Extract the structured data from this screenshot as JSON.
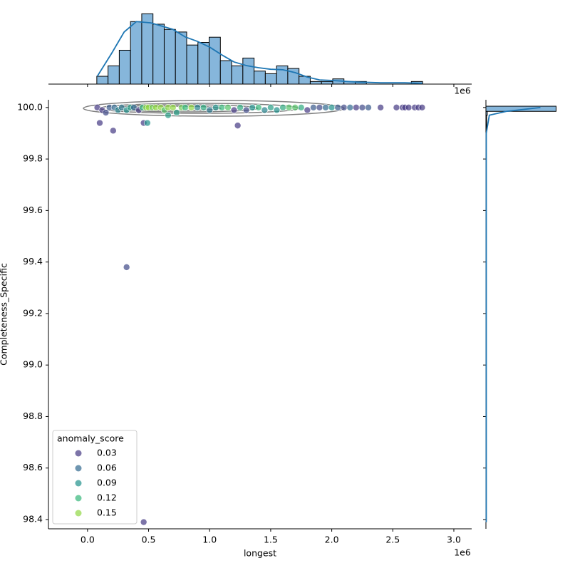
{
  "chart_data": {
    "type": "scatter",
    "x_label": "longest",
    "y_label": "Completeness_Specific",
    "x_offset_label": "1e6",
    "xlim": [
      -0.32,
      3.146
    ],
    "ylim": [
      98.364,
      100.03
    ],
    "xticks": [
      {
        "value": 0,
        "label": "0.0"
      },
      0.5,
      {
        "value": 1,
        "label": "1.0"
      },
      1.5,
      {
        "value": 2,
        "label": "2.0"
      },
      2.5,
      {
        "value": 3,
        "label": "3.0"
      }
    ],
    "yticks": [
      98.4,
      98.6,
      98.8,
      {
        "value": 99,
        "label": "99.0"
      },
      99.2,
      99.4,
      99.6,
      99.8,
      {
        "value": 100,
        "label": "100.0"
      }
    ],
    "x": [
      0.08,
      0.12,
      0.15,
      0.18,
      0.22,
      0.25,
      0.28,
      0.32,
      0.35,
      0.38,
      0.42,
      0.45,
      0.48,
      0.5,
      0.53,
      0.56,
      0.6,
      0.63,
      0.66,
      0.7,
      0.73,
      0.77,
      0.8,
      0.85,
      0.9,
      0.95,
      1.0,
      1.05,
      1.1,
      1.15,
      1.2,
      1.25,
      1.3,
      1.35,
      1.4,
      1.45,
      1.5,
      1.55,
      1.6,
      1.65,
      1.7,
      1.75,
      1.8,
      1.85,
      1.9,
      1.95,
      2.0,
      2.05,
      2.1,
      2.15,
      2.2,
      2.25,
      2.3,
      2.4,
      2.53,
      2.58,
      2.6,
      2.63,
      2.68,
      2.71,
      2.74,
      0.1,
      0.21,
      0.46,
      0.49,
      0.66,
      1.23,
      0.32,
      0.46
    ],
    "y": [
      100.0,
      99.99,
      99.98,
      100.0,
      100.0,
      99.99,
      100.0,
      99.99,
      100.0,
      100.0,
      99.99,
      100.0,
      100.0,
      100.0,
      100.0,
      100.0,
      100.0,
      99.99,
      100.0,
      100.0,
      99.98,
      100.0,
      100.0,
      100.0,
      100.0,
      100.0,
      99.99,
      100.0,
      100.0,
      100.0,
      99.99,
      100.0,
      99.99,
      100.0,
      100.0,
      99.99,
      100.0,
      99.99,
      100.0,
      100.0,
      100.0,
      100.0,
      99.99,
      100.0,
      100.0,
      100.0,
      100.0,
      100.0,
      100.0,
      100.0,
      100.0,
      100.0,
      100.0,
      100.0,
      100.0,
      100.0,
      100.0,
      100.0,
      100.0,
      100.0,
      100.0,
      99.94,
      99.91,
      99.94,
      99.94,
      99.97,
      99.93,
      99.38,
      98.39
    ],
    "hue": [
      0.03,
      0.02,
      0.04,
      0.05,
      0.06,
      0.08,
      0.07,
      0.09,
      0.1,
      0.06,
      0.01,
      0.12,
      0.15,
      0.16,
      0.14,
      0.17,
      0.15,
      0.13,
      0.16,
      0.15,
      0.1,
      0.14,
      0.12,
      0.15,
      0.08,
      0.11,
      0.07,
      0.09,
      0.12,
      0.13,
      0.02,
      0.11,
      0.04,
      0.09,
      0.12,
      0.08,
      0.1,
      0.09,
      0.11,
      0.13,
      0.13,
      0.11,
      0.02,
      0.05,
      0.04,
      0.06,
      0.09,
      0.05,
      0.04,
      0.06,
      0.03,
      0.04,
      0.05,
      0.03,
      0.02,
      0.01,
      0.0,
      0.01,
      0.02,
      0.0,
      0.01,
      0.01,
      0.01,
      0.01,
      0.09,
      0.1,
      0.02,
      0.04,
      0.0
    ],
    "legend_title": "anomaly_score",
    "legend_location": "lower left",
    "legend": [
      {
        "value": 0.03,
        "color": "#443983"
      },
      {
        "value": 0.06,
        "color": "#31688e"
      },
      {
        "value": 0.09,
        "color": "#21918c"
      },
      {
        "value": 0.12,
        "color": "#35b779"
      },
      {
        "value": 0.15,
        "color": "#90d743"
      }
    ],
    "point_opacity": 0.7,
    "top_hist": {
      "bins": [
        0.076,
        0.168,
        0.26,
        0.352,
        0.444,
        0.536,
        0.628,
        0.72,
        0.812,
        0.904,
        0.996,
        1.088,
        1.18,
        1.272,
        1.364,
        1.456,
        1.548,
        1.64,
        1.732,
        1.824,
        1.916,
        2.008,
        2.1,
        2.192,
        2.284,
        2.376,
        2.468,
        2.56,
        2.652,
        2.744
      ],
      "counts": [
        3,
        7,
        13,
        24,
        27,
        23,
        21,
        20,
        15,
        16,
        18,
        9,
        7,
        10,
        5,
        4,
        7,
        6,
        3,
        1,
        1,
        2,
        1,
        1,
        0,
        0,
        0,
        0,
        1
      ],
      "ylim": [
        0,
        29
      ],
      "color": "#86b6db",
      "kde_x": [
        0.08,
        0.2,
        0.3,
        0.4,
        0.52,
        0.7,
        0.8,
        0.9,
        1.0,
        1.1,
        1.2,
        1.3,
        1.4,
        1.5,
        1.6,
        1.7,
        1.8,
        1.9,
        2.0,
        2.2,
        2.4,
        2.6,
        2.74
      ],
      "kde_y": [
        3,
        12,
        20,
        24,
        23.5,
        21,
        18.1,
        16.4,
        14.2,
        11.2,
        8.5,
        7.1,
        6.3,
        5.7,
        5.5,
        4.4,
        2.7,
        1.6,
        1.4,
        0.8,
        0.5,
        0.5,
        0.3
      ],
      "kde_color": "#1f77b4"
    },
    "right_hist": {
      "bins": [
        99.91,
        99.94,
        99.97,
        99.985,
        100.005
      ],
      "counts": [
        1,
        1,
        2,
        103
      ],
      "xlim": [
        0,
        113
      ],
      "color": "#86b6db",
      "kde_y": [
        98.39,
        99.9,
        99.97,
        99.985,
        100.0
      ],
      "kde_x": [
        0.5,
        0.5,
        5,
        30,
        80
      ],
      "kde_color": "#1f77b4"
    }
  }
}
